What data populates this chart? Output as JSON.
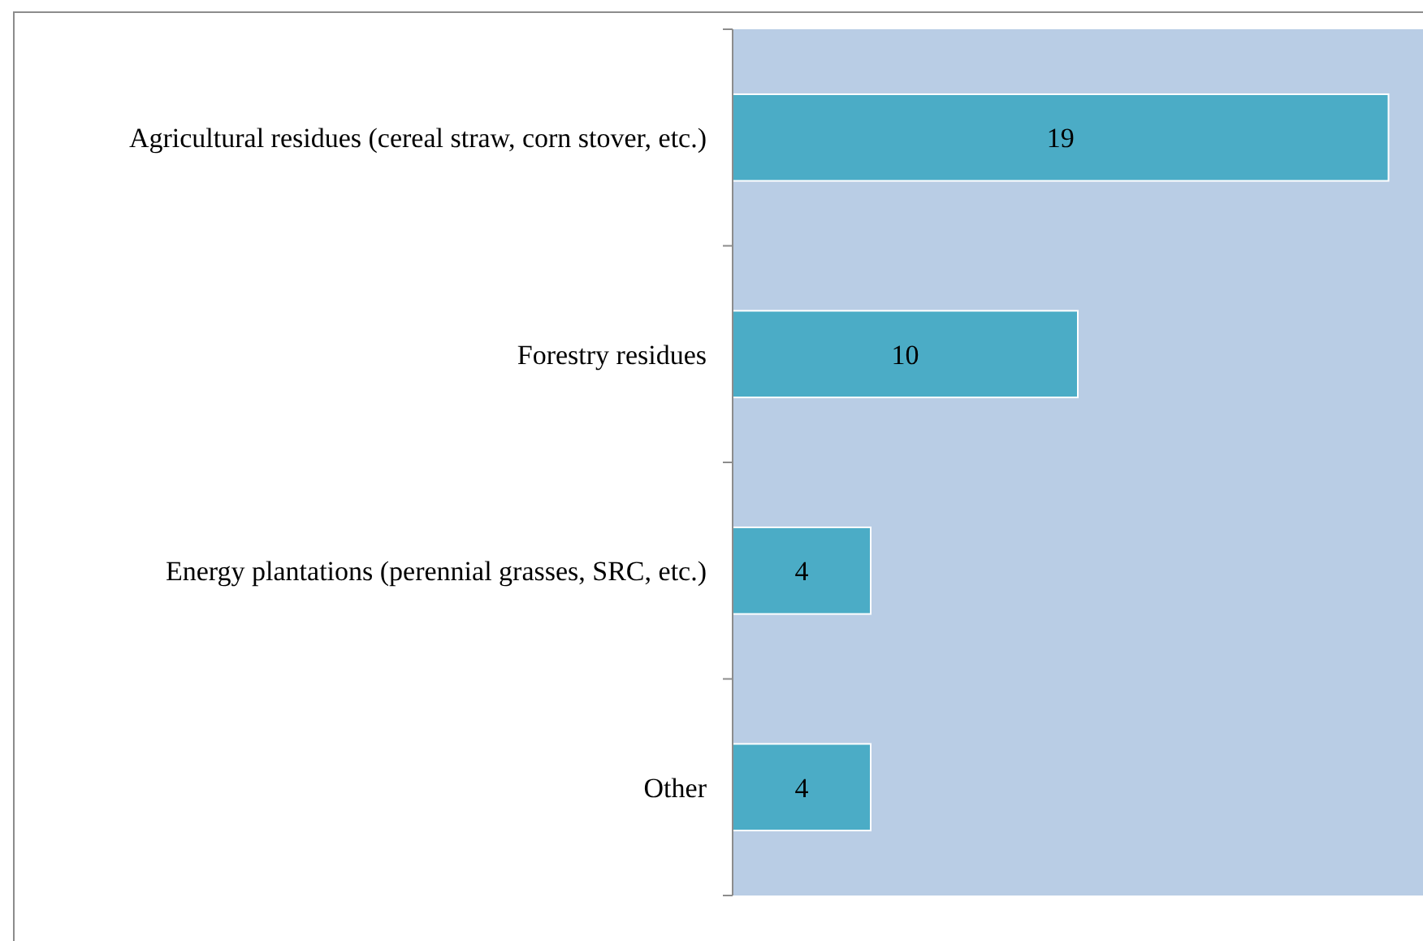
{
  "chart_data": {
    "type": "bar",
    "orientation": "horizontal",
    "categories": [
      "Agricultural residues (cereal straw, corn stover, etc.)",
      "Forestry residues",
      "Energy plantations (perennial grasses, SRC, etc.)",
      "Other"
    ],
    "values": [
      19,
      10,
      4,
      4
    ],
    "color": "#4bacc6",
    "data_labels": true,
    "xlim": [
      0,
      20
    ],
    "tick_labels": "y"
  }
}
